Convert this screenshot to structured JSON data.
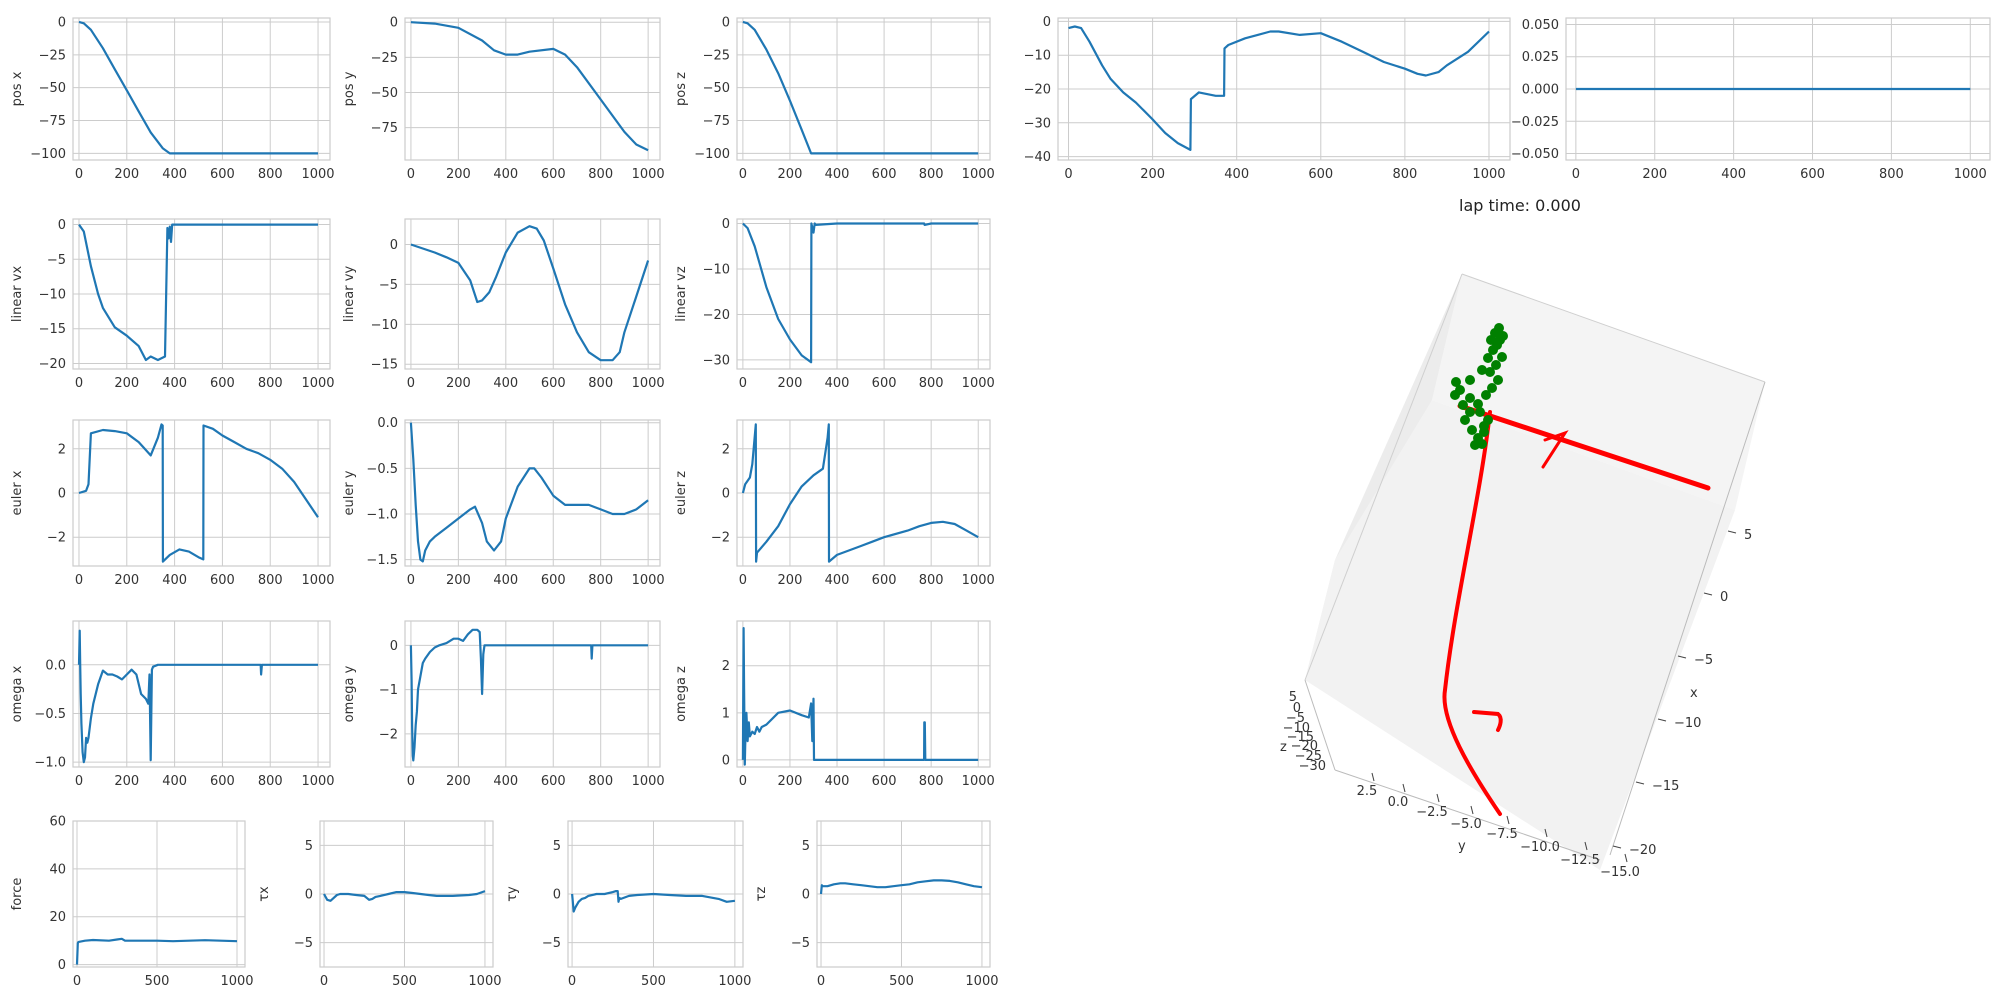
{
  "lap_time_text": "lap time: 0.000",
  "colors": {
    "line": "#1f77b4",
    "grid": "#cccccc",
    "frame": "#cccccc",
    "axis3d_pane": "#f2f2f2",
    "trajectory": "#ff0000",
    "obstacle": "#008000"
  },
  "chart_data": [
    {
      "id": "pos_x",
      "type": "line",
      "ylabel": "pos x",
      "xlim": [
        -25,
        1050
      ],
      "ylim": [
        -105,
        3
      ],
      "xticks": [
        0,
        200,
        400,
        600,
        800,
        1000
      ],
      "yticks": [
        0,
        -25,
        -50,
        -75,
        -100
      ],
      "x": [
        0,
        20,
        50,
        100,
        150,
        200,
        250,
        300,
        350,
        380,
        400,
        600,
        800,
        1000
      ],
      "y": [
        0,
        -1,
        -6,
        -20,
        -36,
        -52,
        -68,
        -84,
        -96,
        -100,
        -100,
        -100,
        -100,
        -100
      ]
    },
    {
      "id": "pos_y",
      "type": "line",
      "ylabel": "pos y",
      "xlim": [
        -25,
        1050
      ],
      "ylim": [
        -98,
        3
      ],
      "xticks": [
        0,
        200,
        400,
        600,
        800,
        1000
      ],
      "yticks": [
        0,
        -25,
        -50,
        -75
      ],
      "x": [
        0,
        100,
        200,
        300,
        350,
        400,
        450,
        500,
        600,
        650,
        700,
        800,
        900,
        950,
        1000
      ],
      "y": [
        0,
        -1,
        -4,
        -13,
        -20,
        -23,
        -23,
        -21,
        -19,
        -23,
        -32,
        -55,
        -78,
        -87,
        -91
      ]
    },
    {
      "id": "pos_z",
      "type": "line",
      "ylabel": "pos z",
      "xlim": [
        -25,
        1050
      ],
      "ylim": [
        -105,
        3
      ],
      "xticks": [
        0,
        200,
        400,
        600,
        800,
        1000
      ],
      "yticks": [
        0,
        -25,
        -50,
        -75,
        -100
      ],
      "x": [
        0,
        20,
        50,
        100,
        150,
        200,
        250,
        290,
        300,
        400,
        600,
        800,
        1000
      ],
      "y": [
        0,
        -1,
        -6,
        -21,
        -39,
        -60,
        -82,
        -100,
        -100,
        -100,
        -100,
        -100,
        -100
      ]
    },
    {
      "id": "unlabeled_top4",
      "type": "line",
      "ylabel": "",
      "xlim": [
        -25,
        1050
      ],
      "ylim": [
        -41,
        1
      ],
      "xticks": [
        0,
        200,
        400,
        600,
        800,
        1000
      ],
      "yticks": [
        0,
        -10,
        -20,
        -30,
        -40
      ],
      "x": [
        0,
        15,
        30,
        50,
        80,
        100,
        130,
        160,
        200,
        230,
        260,
        290,
        291,
        310,
        350,
        370,
        371,
        380,
        420,
        450,
        480,
        500,
        550,
        600,
        650,
        700,
        750,
        800,
        830,
        850,
        880,
        900,
        950,
        1000
      ],
      "y": [
        -2,
        -1.5,
        -2,
        -6,
        -13,
        -17,
        -21,
        -24,
        -29,
        -33,
        -36,
        -38,
        -23,
        -21,
        -22,
        -22,
        -8,
        -7,
        -5,
        -4,
        -3,
        -3,
        -4,
        -3.5,
        -6,
        -9,
        -12,
        -14,
        -15.5,
        -16,
        -15,
        -13,
        -9,
        -3
      ]
    },
    {
      "id": "unlabeled_top5",
      "type": "line",
      "ylabel": "",
      "xlim": [
        -25,
        1050
      ],
      "ylim": [
        -0.055,
        0.055
      ],
      "xticks": [
        0,
        200,
        400,
        600,
        800,
        1000
      ],
      "yticks": [
        0.05,
        0.025,
        0.0,
        -0.025,
        -0.05
      ],
      "tick_labels_y": [
        "0.050",
        "0.025",
        "0.000",
        "−0.025",
        "−0.050"
      ],
      "x": [
        0,
        1000
      ],
      "y": [
        0,
        0
      ]
    },
    {
      "id": "linear_vx",
      "type": "line",
      "ylabel": "linear vx",
      "xlim": [
        -25,
        1050
      ],
      "ylim": [
        -20.8,
        0.8
      ],
      "xticks": [
        0,
        200,
        400,
        600,
        800,
        1000
      ],
      "yticks": [
        0,
        -5,
        -10,
        -15,
        -20
      ],
      "x": [
        0,
        20,
        50,
        80,
        100,
        150,
        200,
        250,
        280,
        300,
        330,
        360,
        370,
        375,
        380,
        385,
        390,
        400,
        600,
        800,
        1000
      ],
      "y": [
        0,
        -1,
        -6,
        -10,
        -12,
        -14.8,
        -16,
        -17.5,
        -19.5,
        -19,
        -19.5,
        -19,
        -0.5,
        -2,
        -0.3,
        -2.5,
        0,
        0,
        0,
        0,
        0
      ]
    },
    {
      "id": "linear_vy",
      "type": "line",
      "ylabel": "linear vy",
      "xlim": [
        -25,
        1050
      ],
      "ylim": [
        -15.6,
        3.2
      ],
      "xticks": [
        0,
        200,
        400,
        600,
        800,
        1000
      ],
      "yticks": [
        0,
        -5,
        -10,
        -15
      ],
      "x": [
        0,
        50,
        100,
        150,
        200,
        250,
        280,
        300,
        330,
        360,
        400,
        450,
        500,
        530,
        560,
        600,
        650,
        700,
        750,
        800,
        850,
        880,
        900,
        950,
        1000
      ],
      "y": [
        0,
        -0.5,
        -1,
        -1.6,
        -2.3,
        -4.5,
        -7.2,
        -7,
        -6,
        -4,
        -1,
        1.5,
        2.3,
        2,
        0.5,
        -3,
        -7.5,
        -11,
        -13.5,
        -14.5,
        -14.5,
        -13.5,
        -11,
        -6.5,
        -2
      ]
    },
    {
      "id": "linear_vz",
      "type": "line",
      "ylabel": "linear vz",
      "xlim": [
        -25,
        1050
      ],
      "ylim": [
        -32,
        1
      ],
      "xticks": [
        0,
        200,
        400,
        600,
        800,
        1000
      ],
      "yticks": [
        0,
        -10,
        -20,
        -30
      ],
      "x": [
        0,
        20,
        50,
        100,
        150,
        200,
        250,
        290,
        291,
        300,
        305,
        310,
        400,
        600,
        770,
        772,
        800,
        1000
      ],
      "y": [
        0,
        -1,
        -5,
        -14,
        -21,
        -25.5,
        -29,
        -30.5,
        0,
        -2,
        0,
        -0.3,
        0,
        0,
        0,
        -0.3,
        0,
        0
      ]
    },
    {
      "id": "euler_x",
      "type": "line",
      "ylabel": "euler x",
      "xlim": [
        -25,
        1050
      ],
      "ylim": [
        -3.3,
        3.3
      ],
      "xticks": [
        0,
        200,
        400,
        600,
        800,
        1000
      ],
      "yticks": [
        2,
        0,
        -2
      ],
      "x": [
        0,
        30,
        40,
        50,
        100,
        150,
        200,
        250,
        300,
        330,
        345,
        350,
        351,
        380,
        420,
        460,
        500,
        520,
        521,
        560,
        600,
        650,
        700,
        750,
        800,
        850,
        900,
        950,
        1000
      ],
      "y": [
        0,
        0.1,
        0.4,
        2.7,
        2.85,
        2.8,
        2.7,
        2.3,
        1.7,
        2.5,
        3.1,
        3.05,
        -3.1,
        -2.8,
        -2.55,
        -2.65,
        -2.9,
        -3.0,
        3.05,
        2.9,
        2.6,
        2.3,
        2.0,
        1.8,
        1.5,
        1.1,
        0.5,
        -0.3,
        -1.1
      ]
    },
    {
      "id": "euler_y",
      "type": "line",
      "ylabel": "euler y",
      "xlim": [
        -25,
        1050
      ],
      "ylim": [
        -1.57,
        0.03
      ],
      "xticks": [
        0,
        200,
        400,
        600,
        800,
        1000
      ],
      "yticks": [
        0,
        -0.5,
        -1,
        -1.5
      ],
      "tick_labels_y": [
        "0.0",
        "−0.5",
        "−1.0",
        "−1.5"
      ],
      "x": [
        0,
        10,
        20,
        30,
        40,
        50,
        60,
        80,
        100,
        150,
        200,
        250,
        270,
        300,
        320,
        350,
        380,
        400,
        450,
        500,
        520,
        550,
        600,
        650,
        700,
        750,
        800,
        850,
        900,
        950,
        1000
      ],
      "y": [
        0,
        -0.4,
        -0.9,
        -1.3,
        -1.5,
        -1.52,
        -1.4,
        -1.3,
        -1.25,
        -1.15,
        -1.05,
        -0.95,
        -0.92,
        -1.1,
        -1.3,
        -1.4,
        -1.3,
        -1.05,
        -0.7,
        -0.5,
        -0.5,
        -0.6,
        -0.8,
        -0.9,
        -0.9,
        -0.9,
        -0.95,
        -1.0,
        -1.0,
        -0.95,
        -0.85
      ]
    },
    {
      "id": "euler_z",
      "type": "line",
      "ylabel": "euler z",
      "xlim": [
        -25,
        1050
      ],
      "ylim": [
        -3.3,
        3.3
      ],
      "xticks": [
        0,
        200,
        400,
        600,
        800,
        1000
      ],
      "yticks": [
        2,
        0,
        -2
      ],
      "x": [
        0,
        10,
        30,
        40,
        55,
        56,
        60,
        100,
        150,
        200,
        250,
        300,
        340,
        360,
        365,
        366,
        400,
        450,
        500,
        550,
        600,
        700,
        750,
        800,
        850,
        900,
        950,
        1000
      ],
      "y": [
        0,
        0.4,
        0.7,
        1.3,
        3.1,
        -3.1,
        -2.7,
        -2.2,
        -1.5,
        -0.5,
        0.3,
        0.8,
        1.1,
        2.5,
        3.1,
        -3.1,
        -2.8,
        -2.6,
        -2.4,
        -2.2,
        -2.0,
        -1.7,
        -1.5,
        -1.35,
        -1.3,
        -1.4,
        -1.7,
        -2.0
      ]
    },
    {
      "id": "omega_x",
      "type": "line",
      "ylabel": "omega x",
      "xlim": [
        -25,
        1050
      ],
      "ylim": [
        -1.05,
        0.45
      ],
      "xticks": [
        0,
        200,
        400,
        600,
        800,
        1000
      ],
      "yticks": [
        0,
        -0.5,
        -1
      ],
      "tick_labels_y": [
        "0.0",
        "−0.5",
        "−1.0"
      ],
      "x": [
        0,
        3,
        5,
        7,
        10,
        15,
        20,
        25,
        30,
        35,
        40,
        50,
        60,
        80,
        100,
        120,
        140,
        160,
        180,
        200,
        220,
        240,
        260,
        280,
        290,
        295,
        300,
        305,
        310,
        330,
        350,
        400,
        600,
        760,
        762,
        765,
        800,
        1000
      ],
      "y": [
        0,
        0.35,
        0,
        -0.3,
        -0.6,
        -0.9,
        -1.0,
        -0.95,
        -0.75,
        -0.8,
        -0.75,
        -0.55,
        -0.4,
        -0.2,
        -0.06,
        -0.1,
        -0.1,
        -0.12,
        -0.15,
        -0.1,
        -0.05,
        -0.1,
        -0.3,
        -0.35,
        -0.4,
        -0.1,
        -0.98,
        -0.05,
        -0.02,
        0,
        0,
        0,
        0,
        0,
        -0.1,
        0,
        0,
        0
      ]
    },
    {
      "id": "omega_y",
      "type": "line",
      "ylabel": "omega y",
      "xlim": [
        -25,
        1050
      ],
      "ylim": [
        -2.75,
        0.55
      ],
      "xticks": [
        0,
        200,
        400,
        600,
        800,
        1000
      ],
      "yticks": [
        0,
        -1,
        -2
      ],
      "x": [
        0,
        3,
        5,
        8,
        10,
        15,
        20,
        25,
        30,
        40,
        50,
        60,
        80,
        100,
        120,
        150,
        180,
        200,
        220,
        240,
        260,
        280,
        290,
        295,
        300,
        305,
        310,
        400,
        600,
        760,
        762,
        765,
        800,
        1000
      ],
      "y": [
        0,
        -0.8,
        -1.8,
        -2.5,
        -2.6,
        -2.3,
        -1.8,
        -1.5,
        -1.0,
        -0.7,
        -0.4,
        -0.3,
        -0.15,
        -0.05,
        0.0,
        0.05,
        0.15,
        0.15,
        0.1,
        0.25,
        0.35,
        0.35,
        0.3,
        -0.3,
        -1.1,
        -0.2,
        0,
        0,
        0,
        0,
        -0.3,
        0,
        0,
        0
      ]
    },
    {
      "id": "omega_z",
      "type": "line",
      "ylabel": "omega z",
      "xlim": [
        -25,
        1050
      ],
      "ylim": [
        -0.15,
        2.95
      ],
      "xticks": [
        0,
        200,
        400,
        600,
        800,
        1000
      ],
      "yticks": [
        0,
        1,
        2
      ],
      "x": [
        0,
        3,
        5,
        8,
        10,
        15,
        20,
        25,
        30,
        40,
        50,
        60,
        70,
        80,
        100,
        150,
        200,
        250,
        280,
        290,
        295,
        300,
        302,
        305,
        310,
        400,
        600,
        770,
        771,
        773,
        775,
        800,
        1000
      ],
      "y": [
        0,
        2.8,
        1.5,
        -0.1,
        0.3,
        1.0,
        0.4,
        0.8,
        0.5,
        0.6,
        0.55,
        0.7,
        0.6,
        0.7,
        0.75,
        1.0,
        1.05,
        0.95,
        0.9,
        1.2,
        0.4,
        1.3,
        0,
        0,
        0,
        0,
        0,
        0,
        0.8,
        0.8,
        0,
        0,
        0
      ]
    },
    {
      "id": "force",
      "type": "line",
      "ylabel": "force",
      "xlim": [
        -25,
        1050
      ],
      "ylim": [
        -1,
        60
      ],
      "xticks": [
        0,
        500,
        1000
      ],
      "yticks": [
        0,
        20,
        40,
        60
      ],
      "x": [
        0,
        5,
        10,
        50,
        100,
        200,
        250,
        280,
        300,
        350,
        400,
        500,
        600,
        700,
        800,
        900,
        1000
      ],
      "y": [
        0,
        9,
        9.5,
        10,
        10.3,
        10,
        10.5,
        10.8,
        10,
        10,
        10,
        10,
        9.8,
        10,
        10.2,
        10,
        9.8
      ]
    },
    {
      "id": "tau_x",
      "type": "line",
      "ylabel": "τx",
      "xlim": [
        -25,
        1050
      ],
      "ylim": [
        -7.5,
        7.5
      ],
      "xticks": [
        0,
        500,
        1000
      ],
      "yticks": [
        5,
        0,
        -5
      ],
      "x": [
        0,
        20,
        40,
        60,
        80,
        100,
        150,
        200,
        250,
        280,
        300,
        320,
        350,
        400,
        450,
        500,
        550,
        600,
        650,
        700,
        800,
        900,
        950,
        1000
      ],
      "y": [
        0,
        -0.6,
        -0.7,
        -0.4,
        -0.1,
        0,
        0,
        -0.1,
        -0.2,
        -0.6,
        -0.5,
        -0.3,
        -0.2,
        0,
        0.2,
        0.2,
        0.1,
        0,
        -0.1,
        -0.2,
        -0.2,
        -0.1,
        0,
        0.3
      ]
    },
    {
      "id": "tau_y",
      "type": "line",
      "ylabel": "τy",
      "xlim": [
        -25,
        1050
      ],
      "ylim": [
        -7.5,
        7.5
      ],
      "xticks": [
        0,
        500,
        1000
      ],
      "yticks": [
        5,
        0,
        -5
      ],
      "x": [
        0,
        10,
        20,
        40,
        60,
        80,
        100,
        150,
        200,
        250,
        270,
        280,
        285,
        290,
        300,
        350,
        400,
        500,
        600,
        700,
        800,
        900,
        950,
        1000
      ],
      "y": [
        0,
        -1.8,
        -1.4,
        -0.8,
        -0.5,
        -0.4,
        -0.2,
        0,
        0,
        0.2,
        0.3,
        0.3,
        -0.8,
        -0.4,
        -0.5,
        -0.2,
        -0.1,
        0,
        -0.1,
        -0.2,
        -0.2,
        -0.5,
        -0.8,
        -0.7
      ]
    },
    {
      "id": "tau_z",
      "type": "line",
      "ylabel": "τz",
      "xlim": [
        -25,
        1050
      ],
      "ylim": [
        -7.5,
        7.5
      ],
      "xticks": [
        0,
        500,
        1000
      ],
      "yticks": [
        5,
        0,
        -5
      ],
      "x": [
        0,
        5,
        10,
        40,
        80,
        120,
        150,
        200,
        250,
        300,
        350,
        400,
        450,
        500,
        550,
        600,
        650,
        700,
        750,
        800,
        850,
        900,
        950,
        1000
      ],
      "y": [
        0,
        0.9,
        0.8,
        0.8,
        1.0,
        1.1,
        1.1,
        1.0,
        0.9,
        0.8,
        0.7,
        0.7,
        0.8,
        0.9,
        1.0,
        1.2,
        1.3,
        1.4,
        1.4,
        1.35,
        1.2,
        1.0,
        0.8,
        0.7
      ]
    }
  ],
  "axis3d": {
    "xlabel": "x",
    "ylabel": "y",
    "zlabel": "z",
    "x_tick_labels": [
      "5",
      "0",
      "−5",
      "−10",
      "−15",
      "−20"
    ],
    "y_tick_labels": [
      "2.5",
      "0.0",
      "−2.5",
      "−5.0",
      "−7.5",
      "−10.0",
      "−12.5",
      "−15.0"
    ],
    "z_tick_labels": [
      "5",
      "0",
      "−5",
      "−10",
      "−15",
      "−20",
      "−25",
      "−30"
    ]
  }
}
